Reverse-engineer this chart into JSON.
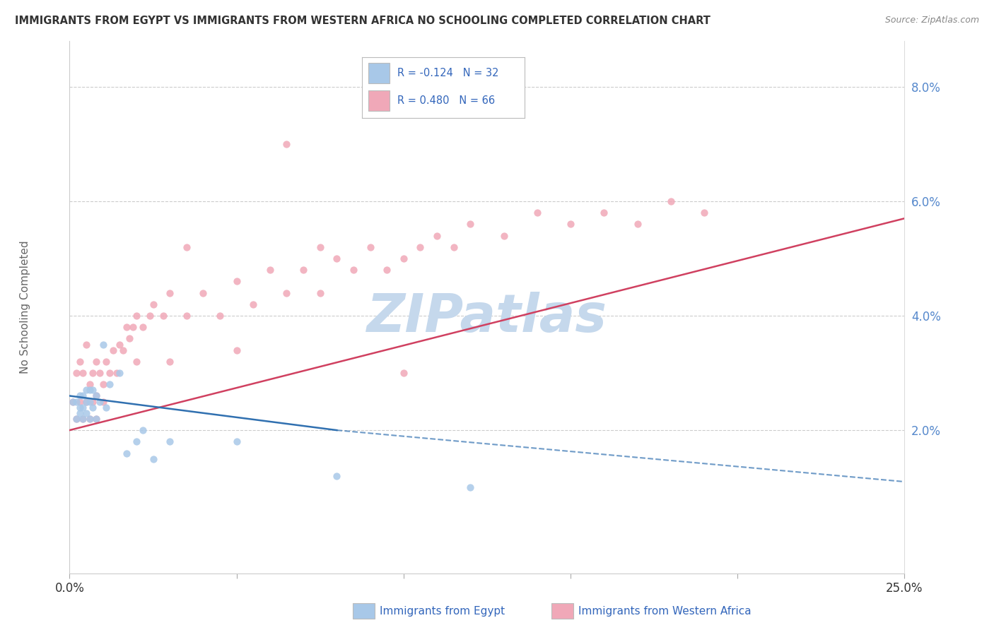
{
  "title": "IMMIGRANTS FROM EGYPT VS IMMIGRANTS FROM WESTERN AFRICA NO SCHOOLING COMPLETED CORRELATION CHART",
  "source": "Source: ZipAtlas.com",
  "xlabel_blue": "Immigrants from Egypt",
  "xlabel_pink": "Immigrants from Western Africa",
  "ylabel": "No Schooling Completed",
  "xlim": [
    0.0,
    0.25
  ],
  "ylim": [
    -0.005,
    0.088
  ],
  "yticks": [
    0.02,
    0.04,
    0.06,
    0.08
  ],
  "ytick_labels": [
    "2.0%",
    "4.0%",
    "6.0%",
    "8.0%"
  ],
  "xtick_positions": [
    0.0,
    0.05,
    0.1,
    0.15,
    0.2,
    0.25
  ],
  "xtick_labels": [
    "0.0%",
    "",
    "",
    "",
    "",
    "25.0%"
  ],
  "legend_blue_r": "R = -0.124",
  "legend_blue_n": "N = 32",
  "legend_pink_r": "R = 0.480",
  "legend_pink_n": "N = 66",
  "blue_color": "#a8c8e8",
  "pink_color": "#f0a8b8",
  "blue_line_color": "#3070b0",
  "pink_line_color": "#d04060",
  "watermark_color": "#c5d8ec",
  "egypt_x": [
    0.001,
    0.002,
    0.002,
    0.003,
    0.003,
    0.003,
    0.004,
    0.004,
    0.004,
    0.005,
    0.005,
    0.005,
    0.006,
    0.006,
    0.006,
    0.007,
    0.007,
    0.008,
    0.008,
    0.009,
    0.01,
    0.011,
    0.012,
    0.015,
    0.017,
    0.02,
    0.022,
    0.025,
    0.03,
    0.05,
    0.08,
    0.12
  ],
  "egypt_y": [
    0.025,
    0.025,
    0.022,
    0.023,
    0.024,
    0.026,
    0.022,
    0.024,
    0.026,
    0.025,
    0.023,
    0.027,
    0.022,
    0.025,
    0.027,
    0.024,
    0.027,
    0.026,
    0.022,
    0.025,
    0.035,
    0.024,
    0.028,
    0.03,
    0.016,
    0.018,
    0.02,
    0.015,
    0.018,
    0.018,
    0.012,
    0.01
  ],
  "waf_x": [
    0.001,
    0.002,
    0.002,
    0.003,
    0.003,
    0.004,
    0.004,
    0.005,
    0.005,
    0.006,
    0.006,
    0.007,
    0.007,
    0.008,
    0.008,
    0.009,
    0.01,
    0.011,
    0.012,
    0.013,
    0.014,
    0.015,
    0.016,
    0.017,
    0.018,
    0.019,
    0.02,
    0.022,
    0.024,
    0.025,
    0.028,
    0.03,
    0.035,
    0.04,
    0.045,
    0.05,
    0.055,
    0.06,
    0.065,
    0.07,
    0.075,
    0.08,
    0.085,
    0.09,
    0.095,
    0.1,
    0.105,
    0.11,
    0.115,
    0.12,
    0.13,
    0.14,
    0.15,
    0.16,
    0.17,
    0.18,
    0.19,
    0.075,
    0.05,
    0.03,
    0.02,
    0.01,
    0.008,
    0.065,
    0.035,
    0.1
  ],
  "waf_y": [
    0.025,
    0.03,
    0.022,
    0.032,
    0.025,
    0.03,
    0.022,
    0.035,
    0.025,
    0.028,
    0.022,
    0.03,
    0.025,
    0.032,
    0.026,
    0.03,
    0.028,
    0.032,
    0.03,
    0.034,
    0.03,
    0.035,
    0.034,
    0.038,
    0.036,
    0.038,
    0.04,
    0.038,
    0.04,
    0.042,
    0.04,
    0.044,
    0.04,
    0.044,
    0.04,
    0.046,
    0.042,
    0.048,
    0.044,
    0.048,
    0.044,
    0.05,
    0.048,
    0.052,
    0.048,
    0.05,
    0.052,
    0.054,
    0.052,
    0.056,
    0.054,
    0.058,
    0.056,
    0.058,
    0.056,
    0.06,
    0.058,
    0.052,
    0.034,
    0.032,
    0.032,
    0.025,
    0.022,
    0.07,
    0.052,
    0.03
  ],
  "pink_trend_x0": 0.0,
  "pink_trend_y0": 0.02,
  "pink_trend_x1": 0.25,
  "pink_trend_y1": 0.057,
  "blue_trend_solid_x0": 0.0,
  "blue_trend_solid_y0": 0.026,
  "blue_trend_solid_x1": 0.08,
  "blue_trend_solid_y1": 0.02,
  "blue_trend_dash_x0": 0.08,
  "blue_trend_dash_y0": 0.02,
  "blue_trend_dash_x1": 0.25,
  "blue_trend_dash_y1": 0.011
}
